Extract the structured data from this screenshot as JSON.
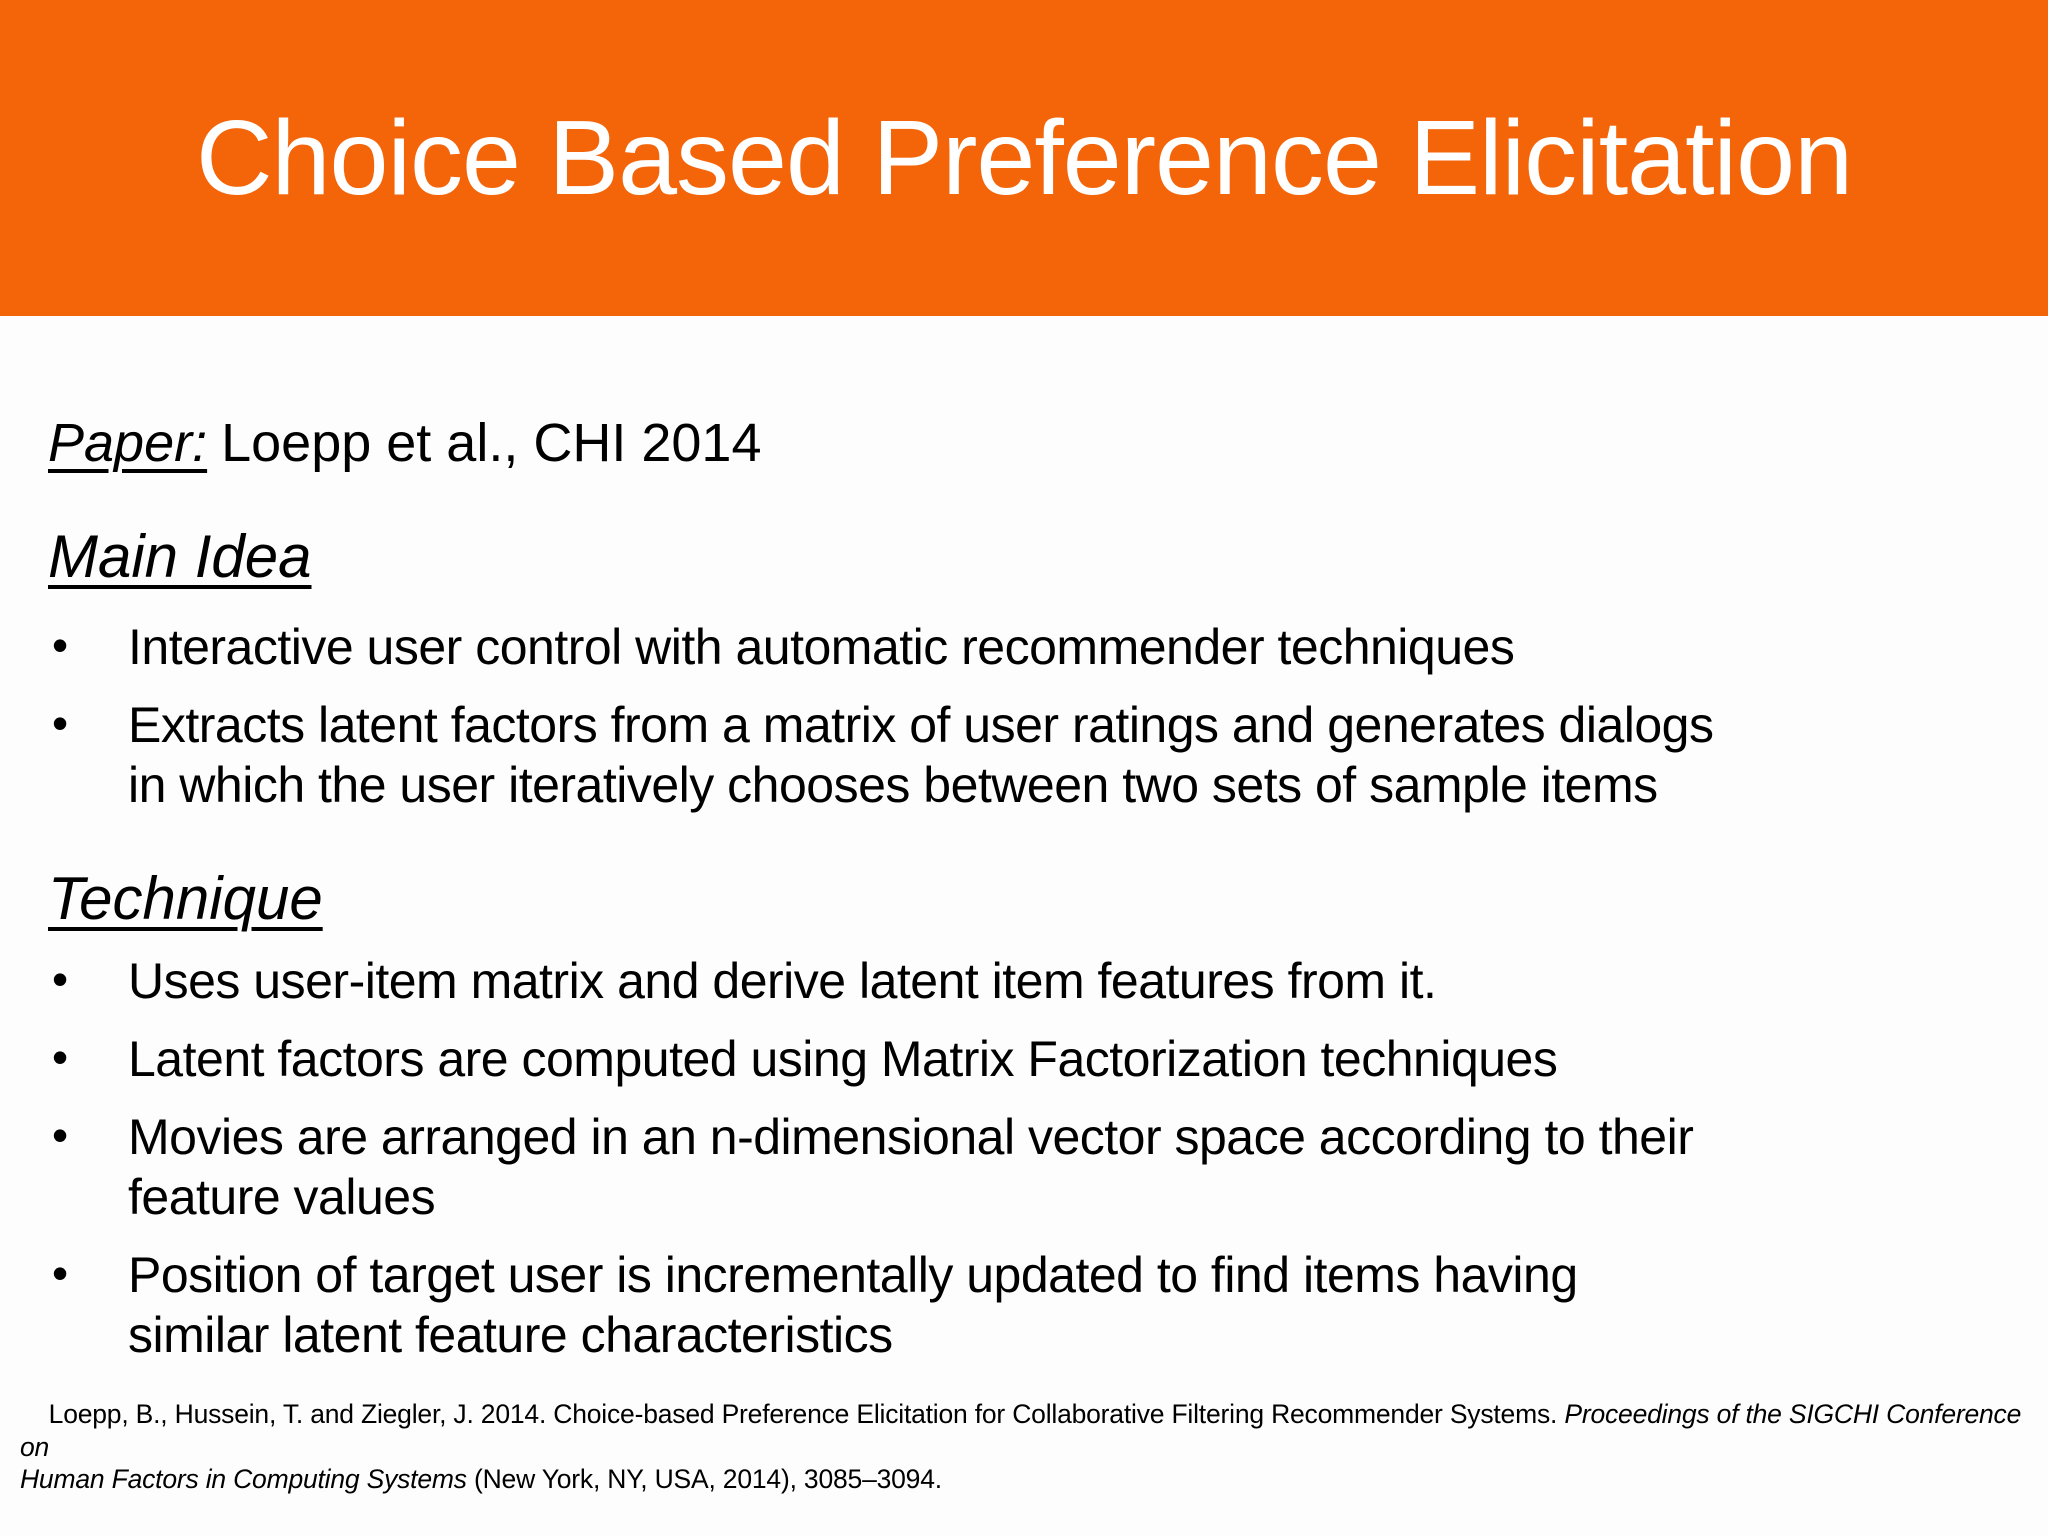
{
  "slide": {
    "title": "Choice Based Preference Elicitation",
    "paper": {
      "label": "Paper:",
      "value": "Loepp et al., CHI 2014"
    },
    "sections": [
      {
        "heading": "Main Idea",
        "bullets": [
          "Interactive user control with automatic recommender techniques",
          "Extracts latent factors from a matrix of user ratings and generates dialogs\nin which the user iteratively chooses between two sets of sample items"
        ]
      },
      {
        "heading": "Technique",
        "bullets": [
          "Uses user-item matrix and derive latent item features from it.",
          "Latent factors are computed using Matrix Factorization techniques",
          "Movies are arranged in an n-dimensional vector space according to their\nfeature values",
          "Position of target user is incrementally updated to find items having\nsimilar latent feature characteristics"
        ]
      }
    ],
    "citation": {
      "prefix": "Loepp, B., Hussein, T. and Ziegler, J. 2014. Choice-based Preference Elicitation for Collaborative Filtering Recommender Systems. ",
      "italic": "Proceedings of the SIGCHI Conference on\nHuman Factors in Computing Systems",
      "suffix": " (New York, NY, USA, 2014), 3085–3094."
    },
    "colors": {
      "banner_background": "#F4650A",
      "title_text": "#FFFFFF",
      "body_text": "#000000",
      "slide_background": "#FDFDFD"
    }
  }
}
